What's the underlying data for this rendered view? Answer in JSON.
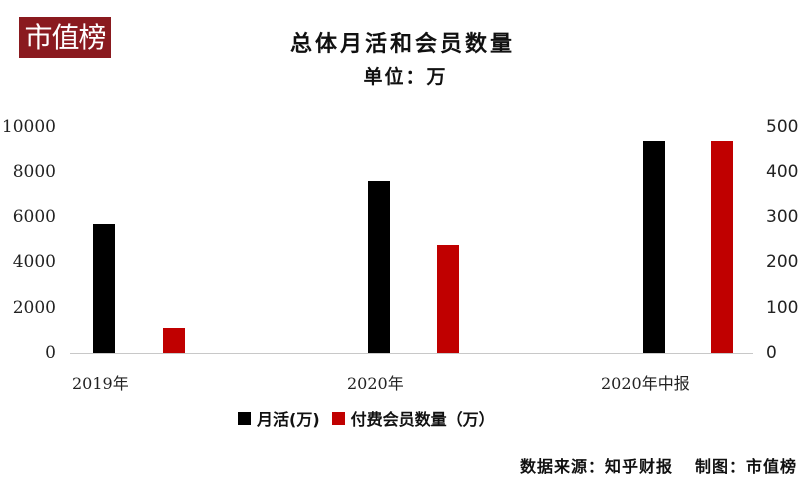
{
  "logo": {
    "text": "市值榜",
    "bg_color": "#8a1a1f"
  },
  "header": {
    "title": "总体月活和会员数量",
    "subtitle": "单位：万"
  },
  "legend": [
    {
      "label": "月活(万)",
      "color": "#000000"
    },
    {
      "label": "付费会员数量（万）",
      "color": "#c00000"
    }
  ],
  "footer": {
    "source": "数据来源：知乎财报",
    "credit": "制图：市值榜"
  },
  "axes": {
    "left_ticks": [
      "10000",
      "8000",
      "6000",
      "4000",
      "2000",
      "0"
    ],
    "right_ticks": [
      "500",
      "400",
      "300",
      "200",
      "100",
      "0"
    ],
    "categories": [
      "2019年",
      "2020年",
      "2020年中报"
    ]
  },
  "chart_data": {
    "type": "bar",
    "title": "总体月活和会员数量",
    "subtitle": "单位：万",
    "categories": [
      "2019年",
      "2020年",
      "2020年中报"
    ],
    "series": [
      {
        "name": "月活(万)",
        "axis": "left",
        "color": "#000000",
        "values": [
          5700,
          7600,
          9400
        ]
      },
      {
        "name": "付费会员数量（万）",
        "axis": "right",
        "color": "#c00000",
        "values": [
          55,
          240,
          470
        ]
      }
    ],
    "xlabel": "",
    "ylabel": "",
    "ylim": [
      0,
      10000
    ],
    "y2lim": [
      0,
      500
    ],
    "grid": false,
    "legend_position": "bottom",
    "annotations": [
      "数据来源：知乎财报",
      "制图：市值榜"
    ]
  }
}
